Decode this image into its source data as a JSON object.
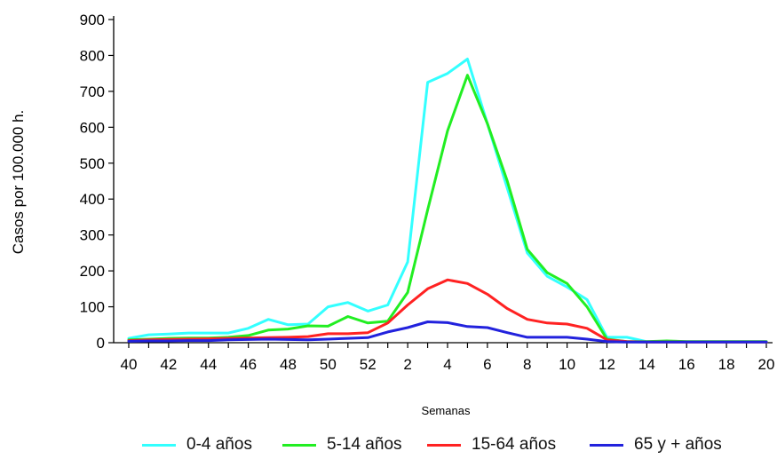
{
  "chart_data": {
    "type": "line",
    "xlabel": "Semanas",
    "ylabel": "Casos por 100.000 h.",
    "ylim": [
      0,
      900
    ],
    "yticks": [
      0,
      100,
      200,
      300,
      400,
      500,
      600,
      700,
      800,
      900
    ],
    "x": [
      40,
      41,
      42,
      43,
      44,
      45,
      46,
      47,
      48,
      49,
      50,
      51,
      52,
      1,
      2,
      3,
      4,
      5,
      6,
      7,
      8,
      9,
      10,
      11,
      12,
      13,
      14,
      15,
      16,
      17,
      18,
      19,
      20
    ],
    "xtick_labels": [
      "40",
      "42",
      "44",
      "46",
      "48",
      "50",
      "52",
      "2",
      "4",
      "6",
      "8",
      "10",
      "12",
      "14",
      "16",
      "18",
      "20"
    ],
    "legend_position": "bottom",
    "grid": false,
    "series": [
      {
        "name": "0-4 años",
        "color": "#33ffff",
        "values": [
          12,
          22,
          24,
          27,
          27,
          27,
          40,
          65,
          50,
          52,
          100,
          112,
          88,
          105,
          225,
          725,
          750,
          790,
          610,
          430,
          250,
          185,
          155,
          120,
          15,
          15,
          3,
          3,
          3,
          3,
          3,
          3,
          3
        ]
      },
      {
        "name": "5-14 años",
        "color": "#22ee22",
        "values": [
          8,
          10,
          12,
          13,
          13,
          15,
          20,
          35,
          38,
          47,
          46,
          73,
          55,
          60,
          140,
          370,
          590,
          745,
          610,
          450,
          260,
          195,
          165,
          100,
          10,
          3,
          3,
          5,
          3,
          3,
          3,
          3,
          3
        ]
      },
      {
        "name": "15-64 años",
        "color": "#ff2222",
        "values": [
          6,
          8,
          9,
          10,
          11,
          12,
          13,
          14,
          15,
          17,
          25,
          25,
          28,
          55,
          105,
          150,
          175,
          165,
          135,
          95,
          65,
          55,
          52,
          40,
          8,
          3,
          2,
          2,
          2,
          2,
          2,
          2,
          2
        ]
      },
      {
        "name": "65 y + años",
        "color": "#2222dd",
        "values": [
          4,
          5,
          5,
          6,
          6,
          8,
          9,
          10,
          9,
          8,
          10,
          12,
          14,
          30,
          42,
          58,
          56,
          45,
          42,
          28,
          15,
          15,
          15,
          10,
          3,
          2,
          2,
          2,
          2,
          2,
          2,
          2,
          2
        ]
      }
    ]
  }
}
